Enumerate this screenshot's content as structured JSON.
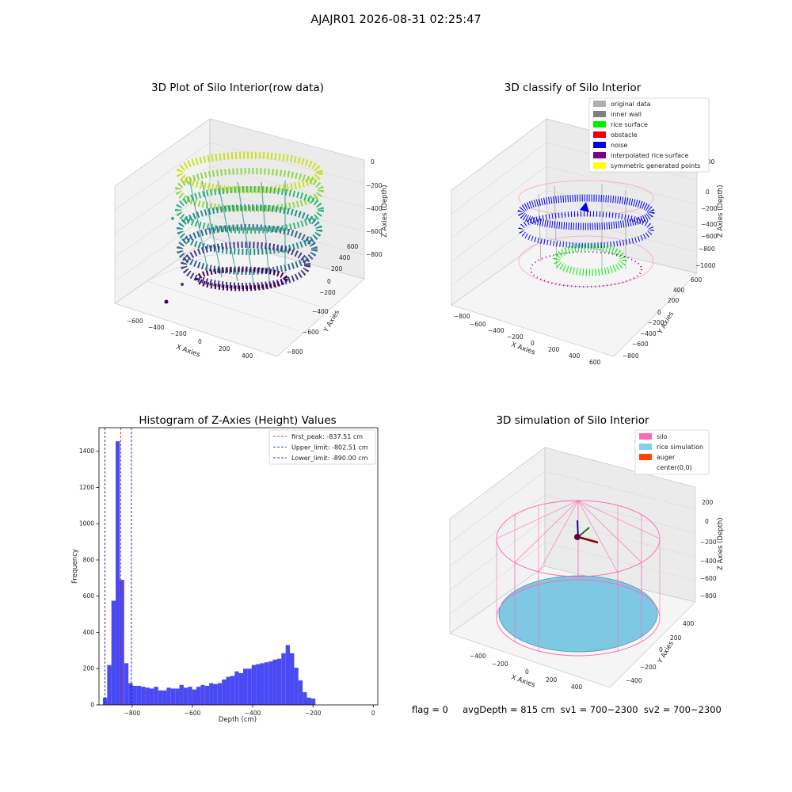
{
  "suptitle": "AJAJR01 2026-08-31 02:25:47",
  "footer": "flag = 0     avgDepth = 815 cm  sv1 = 700~2300  sv2 = 700~2300",
  "chart_data": [
    {
      "type": "scatter3d",
      "title": "3D Plot of Silo Interior(row data)",
      "xlabel": "X Axies",
      "ylabel": "Y Axies",
      "zlabel": "Z Axies (Depth)",
      "x_ticks": [
        "−600",
        "−400",
        "−200",
        "0",
        "200",
        "400"
      ],
      "y_ticks": [
        "−800",
        "−600",
        "−400",
        "−200",
        "0",
        "200",
        "400",
        "600"
      ],
      "z_ticks": [
        "0",
        "−200",
        "−400",
        "−600",
        "−800"
      ],
      "colormap": "viridis"
    },
    {
      "type": "scatter3d",
      "title": "3D classify of Silo Interior",
      "xlabel": "X Axies",
      "ylabel": "Y Axies",
      "zlabel": "Z Axies (Depth)",
      "x_ticks": [
        "−800",
        "−600",
        "−400",
        "−200",
        "0",
        "200",
        "400",
        "600"
      ],
      "y_ticks": [
        "−800",
        "−600",
        "−400",
        "−200",
        "0",
        "200",
        "400",
        "600"
      ],
      "z_ticks": [
        "200",
        "0",
        "−200",
        "−400",
        "−600",
        "−800",
        "−1000"
      ],
      "legend": [
        {
          "label": "original data",
          "color": "#b0b0b0"
        },
        {
          "label": "inner wall",
          "color": "#808080"
        },
        {
          "label": "rice surface",
          "color": "#00ee00"
        },
        {
          "label": "obstacle",
          "color": "#ee0000"
        },
        {
          "label": "noise",
          "color": "#0000ee"
        },
        {
          "label": "interpolated rice surface",
          "color": "#800080"
        },
        {
          "label": "symmetric generated points",
          "color": "#ffff00"
        }
      ]
    },
    {
      "type": "bar",
      "title": "Histogram of Z-Axies (Height) Values",
      "xlabel": "Depth (cm)",
      "ylabel": "Frequency",
      "xlim": [
        -910,
        15
      ],
      "ylim": [
        0,
        1530
      ],
      "x_ticks": [
        -800,
        -600,
        -400,
        -200,
        0
      ],
      "x_tick_labels": [
        "−800",
        "−600",
        "−400",
        "−200",
        "0"
      ],
      "y_ticks": [
        0,
        200,
        400,
        600,
        800,
        1000,
        1200,
        1400
      ],
      "bin_start": -897,
      "bin_width": 14.1,
      "values": [
        40,
        220,
        575,
        1455,
        690,
        230,
        120,
        105,
        105,
        100,
        95,
        90,
        100,
        80,
        80,
        95,
        90,
        90,
        110,
        95,
        100,
        85,
        100,
        110,
        105,
        120,
        115,
        120,
        140,
        155,
        160,
        185,
        175,
        200,
        200,
        220,
        225,
        230,
        235,
        240,
        250,
        255,
        285,
        330,
        285,
        205,
        135,
        70,
        40,
        35
      ],
      "color": "#4a4af5",
      "vlines": [
        {
          "label": "first_peak: -837.51 cm",
          "x": -837.51,
          "color": "#ee0000"
        },
        {
          "label": "Upper_limit: -802.51 cm",
          "x": -802.51,
          "color": "#0000cc"
        },
        {
          "label": "Lower_limit: -890.00 cm",
          "x": -890.0,
          "color": "#0000cc"
        }
      ]
    },
    {
      "type": "surface3d",
      "title": "3D simulation of Silo Interior",
      "xlabel": "X Axies",
      "ylabel": "Y Axies",
      "zlabel": "Z Axies (Depth)",
      "x_ticks": [
        "−400",
        "−200",
        "0",
        "200",
        "400"
      ],
      "y_ticks": [
        "−400",
        "−200",
        "0",
        "200",
        "400"
      ],
      "z_ticks": [
        "200",
        "0",
        "−200",
        "−400",
        "−600",
        "−800"
      ],
      "legend": [
        {
          "label": "silo",
          "color": "#ff69b4"
        },
        {
          "label": "rice simulation",
          "color": "#87ceeb"
        },
        {
          "label": "auger",
          "color": "#ff4500"
        },
        {
          "label": "center(0,0)",
          "color": "#ffffff"
        }
      ]
    }
  ]
}
